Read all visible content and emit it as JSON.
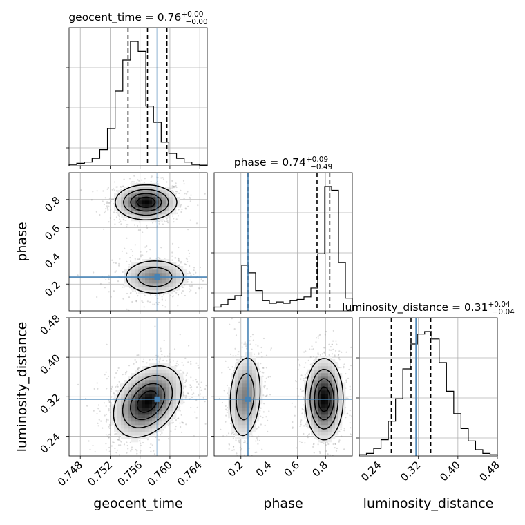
{
  "chart_data": {
    "type": "corner",
    "parameters": [
      "geocent_time",
      "phase",
      "luminosity_distance"
    ],
    "titles": [
      {
        "param": "geocent_time",
        "text": "geocent_time = 0.76",
        "plus": "+0.00",
        "minus": "−0.00"
      },
      {
        "param": "phase",
        "text": "phase = 0.74",
        "plus": "+0.09",
        "minus": "−0.49"
      },
      {
        "param": "luminosity_distance",
        "text": "luminosity_distance = 0.31",
        "plus": "+0.04",
        "minus": "−0.04"
      }
    ],
    "ranges": {
      "geocent_time": [
        0.7465,
        0.765
      ],
      "phase": [
        0.01,
        0.99
      ],
      "luminosity_distance": [
        0.2,
        0.48
      ]
    },
    "ticks": {
      "geocent_time": [
        "0.748",
        "0.752",
        "0.756",
        "0.760",
        "0.764"
      ],
      "phase": [
        "0.2",
        "0.4",
        "0.6",
        "0.8"
      ],
      "luminosity_distance": [
        "0.24",
        "0.32",
        "0.40",
        "0.48"
      ]
    },
    "truths": {
      "geocent_time": 0.7583,
      "phase": 0.25,
      "luminosity_distance": 0.315
    },
    "quantiles": {
      "geocent_time": [
        0.7544,
        0.757,
        0.7596
      ],
      "phase": [
        0.25,
        0.74,
        0.83
      ],
      "luminosity_distance": [
        0.265,
        0.305,
        0.345
      ]
    },
    "histograms": {
      "geocent_time": [
        0.01,
        0.02,
        0.03,
        0.06,
        0.13,
        0.3,
        0.6,
        0.85,
        1.0,
        0.92,
        0.48,
        0.35,
        0.19,
        0.1,
        0.06,
        0.03,
        0.01,
        0.005
      ],
      "phase": [
        0.03,
        0.05,
        0.09,
        0.12,
        0.36,
        0.3,
        0.16,
        0.08,
        0.06,
        0.07,
        0.06,
        0.08,
        0.09,
        0.11,
        0.18,
        0.45,
        0.98,
        0.95,
        0.38,
        0.1
      ],
      "luminosity_distance": [
        0.01,
        0.02,
        0.06,
        0.13,
        0.28,
        0.46,
        0.7,
        0.9,
        0.98,
        1.0,
        0.94,
        0.75,
        0.52,
        0.34,
        0.22,
        0.12,
        0.05,
        0.02,
        0.01
      ]
    },
    "color_truth": "#4682b4",
    "color_hist": "#000000"
  }
}
